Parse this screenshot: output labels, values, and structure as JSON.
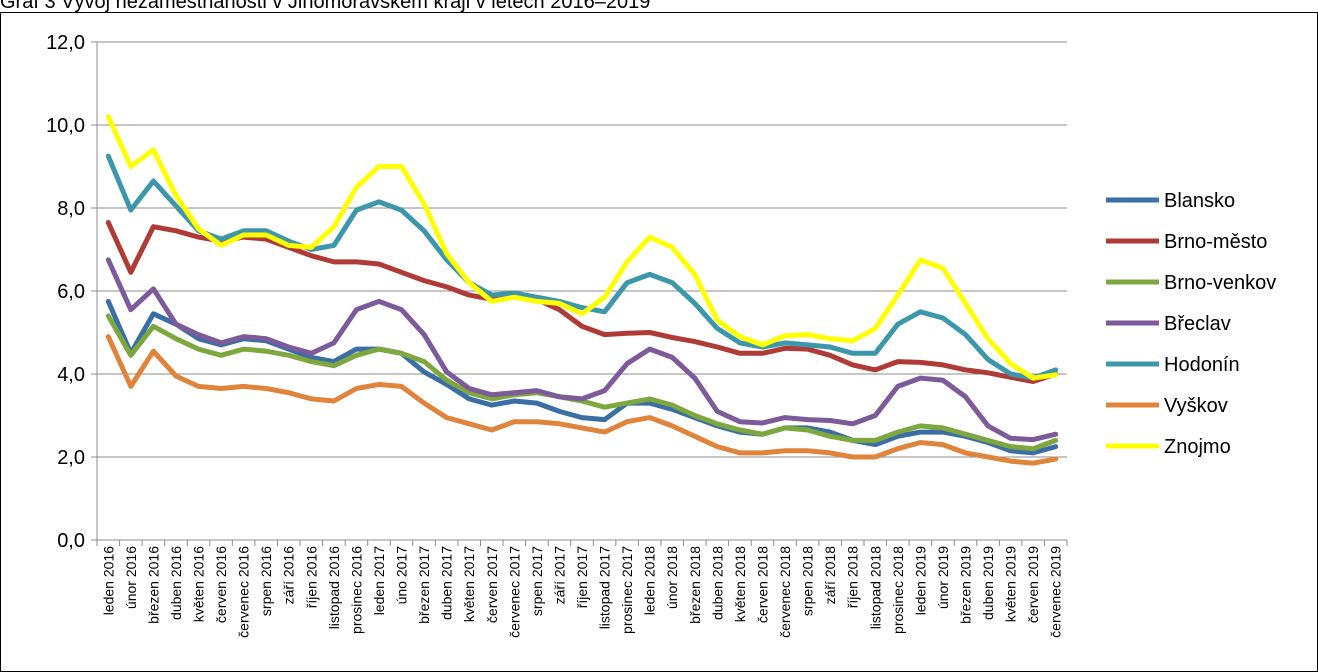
{
  "caption": "Graf 3 Vývoj nezaměstnanosti v Jihomoravském kraji v letech 2016–2019",
  "chart_data": {
    "type": "line",
    "title": "",
    "xlabel": "",
    "ylabel": "",
    "ylim": [
      0,
      12
    ],
    "yticks": [
      "0,0",
      "2,0",
      "4,0",
      "6,0",
      "8,0",
      "10,0",
      "12,0"
    ],
    "grid": true,
    "legend_position": "right",
    "categories": [
      "leden 2016",
      "únor 2016",
      "březen 2016",
      "duben 2016",
      "květen 2016",
      "červen 2016",
      "červenec 2016",
      "srpen 2016",
      "září 2016",
      "říjen 2016",
      "listopad 2016",
      "prosinec 2016",
      "leden 2017",
      "úno 2017",
      "březen 2017",
      "duben 2017",
      "květen 2017",
      "červen 2017",
      "červenec 2017",
      "srpen 2017",
      "září 2017",
      "říjen 2017",
      "listopad 2017",
      "prosinec 2017",
      "leden 2018",
      "únor 2018",
      "březen 2018",
      "duben 2018",
      "květen 2018",
      "červen 2018",
      "červenec 2018",
      "srpen 2018",
      "září 2018",
      "říjen 2018",
      "listopad 2018",
      "prosinec 2018",
      "leden 2019",
      "únor 2019",
      "březen 2019",
      "duben 2019",
      "květen 2019",
      "červen 2019",
      "červenec 2019"
    ],
    "series": [
      {
        "name": "Blansko",
        "color": "#3a6ea5",
        "values": [
          5.75,
          4.5,
          5.45,
          5.2,
          4.85,
          4.7,
          4.85,
          4.8,
          4.6,
          4.4,
          4.3,
          4.6,
          4.6,
          4.5,
          4.05,
          3.75,
          3.4,
          3.25,
          3.35,
          3.3,
          3.1,
          2.95,
          2.9,
          3.3,
          3.3,
          3.15,
          2.95,
          2.75,
          2.6,
          2.55,
          2.7,
          2.7,
          2.6,
          2.4,
          2.3,
          2.5,
          2.6,
          2.6,
          2.5,
          2.35,
          2.15,
          2.1,
          2.25
        ]
      },
      {
        "name": "Brno-město",
        "color": "#b03a36",
        "values": [
          7.65,
          6.45,
          7.55,
          7.45,
          7.3,
          7.2,
          7.3,
          7.25,
          7.05,
          6.85,
          6.7,
          6.7,
          6.65,
          6.45,
          6.25,
          6.1,
          5.9,
          5.8,
          5.9,
          5.8,
          5.55,
          5.15,
          4.95,
          4.98,
          5.0,
          4.88,
          4.78,
          4.65,
          4.5,
          4.5,
          4.62,
          4.6,
          4.45,
          4.22,
          4.1,
          4.3,
          4.28,
          4.22,
          4.1,
          4.03,
          3.92,
          3.82,
          4.0
        ]
      },
      {
        "name": "Brno-venkov",
        "color": "#7ea83e",
        "values": [
          5.4,
          4.45,
          5.15,
          4.85,
          4.6,
          4.45,
          4.6,
          4.55,
          4.45,
          4.3,
          4.2,
          4.45,
          4.6,
          4.5,
          4.3,
          3.85,
          3.55,
          3.4,
          3.5,
          3.55,
          3.45,
          3.35,
          3.2,
          3.3,
          3.4,
          3.25,
          3.0,
          2.8,
          2.65,
          2.55,
          2.7,
          2.65,
          2.5,
          2.4,
          2.4,
          2.6,
          2.75,
          2.7,
          2.55,
          2.4,
          2.25,
          2.2,
          2.4
        ]
      },
      {
        "name": "Břeclav",
        "color": "#7d5a9a",
        "values": [
          6.75,
          5.55,
          6.05,
          5.2,
          4.95,
          4.75,
          4.9,
          4.85,
          4.65,
          4.5,
          4.75,
          5.55,
          5.75,
          5.55,
          4.95,
          4.05,
          3.65,
          3.5,
          3.55,
          3.6,
          3.45,
          3.4,
          3.6,
          4.25,
          4.6,
          4.4,
          3.9,
          3.1,
          2.85,
          2.82,
          2.95,
          2.9,
          2.88,
          2.8,
          3.0,
          3.7,
          3.9,
          3.85,
          3.45,
          2.75,
          2.45,
          2.42,
          2.55
        ]
      },
      {
        "name": "Hodonín",
        "color": "#3d97aa",
        "values": [
          9.25,
          7.95,
          8.65,
          8.05,
          7.45,
          7.25,
          7.45,
          7.45,
          7.2,
          7.0,
          7.1,
          7.95,
          8.15,
          7.95,
          7.45,
          6.75,
          6.2,
          5.9,
          5.95,
          5.85,
          5.75,
          5.6,
          5.5,
          6.2,
          6.4,
          6.2,
          5.7,
          5.1,
          4.75,
          4.65,
          4.75,
          4.7,
          4.65,
          4.5,
          4.5,
          5.2,
          5.5,
          5.35,
          4.95,
          4.35,
          4.0,
          3.9,
          4.1
        ]
      },
      {
        "name": "Vyškov",
        "color": "#e0843c",
        "values": [
          4.9,
          3.7,
          4.55,
          3.95,
          3.7,
          3.65,
          3.7,
          3.65,
          3.55,
          3.4,
          3.35,
          3.65,
          3.75,
          3.7,
          3.3,
          2.95,
          2.8,
          2.65,
          2.85,
          2.85,
          2.8,
          2.7,
          2.6,
          2.85,
          2.95,
          2.75,
          2.5,
          2.25,
          2.1,
          2.1,
          2.15,
          2.15,
          2.1,
          2.0,
          2.0,
          2.2,
          2.35,
          2.3,
          2.1,
          2.0,
          1.9,
          1.85,
          1.95
        ]
      },
      {
        "name": "Znojmo",
        "color": "#ffff00",
        "values": [
          10.2,
          9.0,
          9.4,
          8.3,
          7.5,
          7.1,
          7.35,
          7.35,
          7.1,
          7.05,
          7.55,
          8.5,
          9.0,
          9.0,
          8.1,
          6.9,
          6.2,
          5.75,
          5.85,
          5.75,
          5.7,
          5.45,
          5.85,
          6.7,
          7.3,
          7.05,
          6.4,
          5.3,
          4.9,
          4.7,
          4.92,
          4.95,
          4.85,
          4.8,
          5.1,
          5.9,
          6.75,
          6.55,
          5.7,
          4.85,
          4.25,
          3.9,
          3.98
        ]
      }
    ]
  }
}
